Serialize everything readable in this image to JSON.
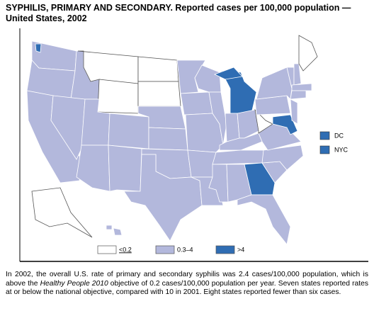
{
  "title": "SYPHILIS, PRIMARY AND SECONDARY. Reported cases per 100,000 population — United States, 2002",
  "legend": [
    {
      "label": "<0.2",
      "color": "#ffffff"
    },
    {
      "label": "0.3–4",
      "color": "#b3b8dc"
    },
    {
      "label": ">4",
      "color": "#2f6db3"
    }
  ],
  "insets": [
    "DC",
    "NYC"
  ],
  "footnote": {
    "before": "In 2002, the overall U.S. rate of primary and secondary syphilis was 2.4 cases/100,000 population, which is above the ",
    "italic": "Healthy People 2010",
    "after": " objective of 0.2 cases/100,000 population per year. Seven states reported rates at or below the national objective, compared with 10 in 2001. Eight states reported fewer than six cases."
  }
}
